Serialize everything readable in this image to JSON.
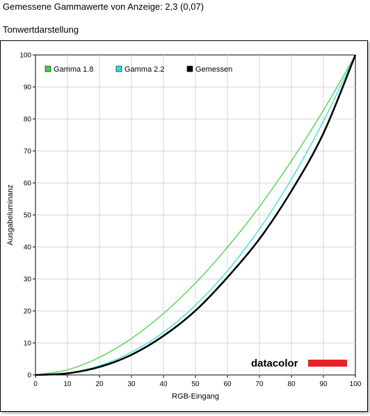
{
  "header": {
    "title": "Gemessene Gammawerte von Anzeige: 2,3 (0,07)",
    "section_title": "Tonwertdarstellung"
  },
  "logo": {
    "text": "datacolor",
    "bar_color": "#e32229"
  },
  "chart_data": {
    "type": "line",
    "xlabel": "RGB-Eingang",
    "ylabel": "Ausgabeluminanz",
    "xlim": [
      0,
      100
    ],
    "ylim": [
      0,
      100
    ],
    "xticks": [
      "0",
      "10",
      "20",
      "30",
      "40",
      "50",
      "60",
      "70",
      "80",
      "90",
      "100"
    ],
    "yticks": [
      "0",
      "10",
      "20",
      "30",
      "40",
      "50",
      "60",
      "70",
      "80",
      "90",
      "100"
    ],
    "grid": true,
    "legend_position": "top-left",
    "x": [
      0,
      10,
      20,
      30,
      40,
      50,
      60,
      70,
      80,
      90,
      100
    ],
    "series": [
      {
        "name": "Gamma 1.8",
        "color": "#44d044",
        "values": [
          0,
          1.6,
          5.5,
          11.4,
          19.2,
          28.7,
          39.9,
          52.6,
          66.9,
          82.7,
          100
        ]
      },
      {
        "name": "Gamma 2.2",
        "color": "#33dddd",
        "values": [
          0,
          0.6,
          2.9,
          7.1,
          13.3,
          21.8,
          32.5,
          45.6,
          61.2,
          79.3,
          100
        ]
      },
      {
        "name": "Gemessen",
        "color": "#000000",
        "values": [
          0,
          0.5,
          2.5,
          6.3,
          12.2,
          20.1,
          30.5,
          42.5,
          57.5,
          75.5,
          100
        ]
      }
    ]
  }
}
